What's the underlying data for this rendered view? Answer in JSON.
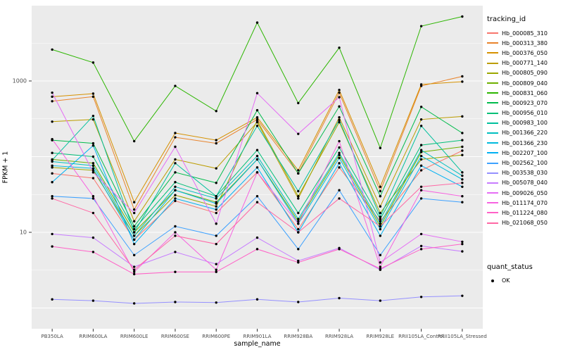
{
  "chart_data": {
    "type": "line",
    "title": "",
    "xlabel": "sample_name",
    "ylabel": "FPKM + 1",
    "y_scale": "log10",
    "y_ticks": [
      10,
      1000
    ],
    "ylim": [
      0.55,
      9900
    ],
    "grid": true,
    "legend_position": "right",
    "panel_background": "#EBEBEB",
    "grid_color": "#FFFFFF",
    "point_color": "#000000",
    "legend_title": "tracking_id",
    "quant_legend_title": "quant_status",
    "quant_status_label": "OK",
    "categories": [
      "PB350LA",
      "RRIM600LA",
      "RRIM600LE",
      "RRIM600SE",
      "RRIM600PE",
      "RRIM901LA",
      "RRIM928BA",
      "RRIM928LA",
      "RRIM928LE",
      "RRII105LA_Control",
      "RRII105LA_Stressed"
    ],
    "series": [
      {
        "name": "Hb_000085_310",
        "color": "#F8766D",
        "values": [
          60,
          52,
          8,
          26,
          18,
          62,
          11,
          72,
          14,
          66,
          120
        ]
      },
      {
        "name": "Hb_000313_380",
        "color": "#E9842C",
        "values": [
          540,
          620,
          20,
          180,
          150,
          310,
          60,
          700,
          35,
          860,
          1150
        ]
      },
      {
        "name": "Hb_000376_050",
        "color": "#D69100",
        "values": [
          620,
          680,
          25,
          205,
          165,
          330,
          66,
          760,
          40,
          900,
          980
        ]
      },
      {
        "name": "Hb_000771_140",
        "color": "#BC9D00",
        "values": [
          290,
          310,
          14,
          92,
          70,
          285,
          28,
          330,
          22,
          310,
          340
        ]
      },
      {
        "name": "Hb_000805_090",
        "color": "#9CA700",
        "values": [
          72,
          66,
          9,
          31,
          22,
          300,
          30,
          285,
          18,
          92,
          105
        ]
      },
      {
        "name": "Hb_000809_040",
        "color": "#6FB000",
        "values": [
          92,
          82,
          10,
          36,
          25,
          92,
          14,
          105,
          12,
          115,
          135
        ]
      },
      {
        "name": "Hb_000831_060",
        "color": "#2CB600",
        "values": [
          2600,
          1750,
          160,
          860,
          400,
          5900,
          510,
          2750,
          130,
          5300,
          7100
        ]
      },
      {
        "name": "Hb_000923_070",
        "color": "#00BB4B",
        "values": [
          165,
          150,
          12,
          62,
          45,
          410,
          60,
          460,
          30,
          455,
          205
        ]
      },
      {
        "name": "Hb_000956_010",
        "color": "#00BF77",
        "values": [
          112,
          100,
          11,
          46,
          30,
          122,
          18,
          132,
          15,
          142,
          165
        ]
      },
      {
        "name": "Hb_000983_100",
        "color": "#00C09D",
        "values": [
          90,
          345,
          10,
          82,
          30,
          255,
          35,
          305,
          16,
          255,
          62
        ]
      },
      {
        "name": "Hb_001366_220",
        "color": "#00BFC0",
        "values": [
          86,
          76,
          9,
          40,
          28,
          102,
          15,
          112,
          13,
          122,
          56
        ]
      },
      {
        "name": "Hb_001366_230",
        "color": "#00BADD",
        "values": [
          76,
          70,
          8,
          36,
          24,
          92,
          13,
          96,
          11,
          102,
          50
        ]
      },
      {
        "name": "Hb_002207_100",
        "color": "#00B1F3",
        "values": [
          46,
          140,
          7,
          28,
          20,
          72,
          10,
          82,
          9,
          76,
          40
        ]
      },
      {
        "name": "Hb_002562_100",
        "color": "#3DA1FF",
        "values": [
          30,
          28,
          5,
          12,
          9,
          30,
          6,
          36,
          5,
          28,
          25
        ]
      },
      {
        "name": "Hb_003538_030",
        "color": "#9590FF",
        "values": [
          1.3,
          1.25,
          1.15,
          1.2,
          1.18,
          1.3,
          1.2,
          1.35,
          1.25,
          1.4,
          1.45
        ]
      },
      {
        "name": "Hb_005078_040",
        "color": "#C77CFF",
        "values": [
          9.5,
          8.5,
          3.5,
          5.5,
          3.8,
          8.5,
          4.2,
          6.2,
          3.2,
          6.6,
          5.6
        ]
      },
      {
        "name": "Hb_009026_050",
        "color": "#E56DF5",
        "values": [
          700,
          62,
          18,
          135,
          13,
          690,
          200,
          610,
          4,
          9.5,
          7.5
        ]
      },
      {
        "name": "Hb_011174_070",
        "color": "#F763E0",
        "values": [
          170,
          30,
          3,
          10,
          3.2,
          62,
          13,
          160,
          3.5,
          36,
          30
        ]
      },
      {
        "name": "Hb_011224_080",
        "color": "#FF61C7",
        "values": [
          6.5,
          5.5,
          2.8,
          3,
          3,
          6,
          4,
          6,
          3.3,
          6,
          7
        ]
      },
      {
        "name": "Hb_021068_050",
        "color": "#FF68A5",
        "values": [
          28,
          18,
          3.2,
          9,
          7,
          25,
          10,
          28,
          12,
          40,
          45
        ]
      }
    ]
  }
}
